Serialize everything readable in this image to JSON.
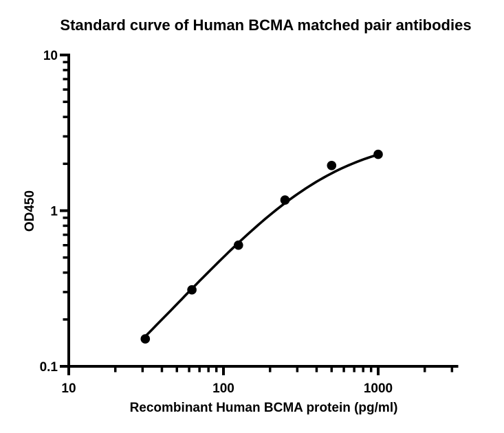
{
  "page": {
    "background": "#ffffff"
  },
  "chart_data": {
    "type": "scatter",
    "title": "Standard curve of Human BCMA matched pair antibodies",
    "xlabel": "Recombinant Human BCMA protein (pg/ml)",
    "ylabel": "OD450",
    "x_scale": "log",
    "y_scale": "log",
    "xlim": [
      10,
      3162
    ],
    "ylim": [
      0.1,
      10
    ],
    "grid": false,
    "legend": "none",
    "x_major_ticks": [
      {
        "value": 10,
        "label": "10"
      },
      {
        "value": 100,
        "label": "100"
      },
      {
        "value": 1000,
        "label": "1000"
      }
    ],
    "x_minor_ticks": [
      20,
      30,
      40,
      50,
      60,
      70,
      80,
      90,
      200,
      300,
      400,
      500,
      600,
      700,
      800,
      900,
      2000,
      3000
    ],
    "y_major_ticks": [
      {
        "value": 0.1,
        "label": "0.1"
      },
      {
        "value": 1,
        "label": "1"
      },
      {
        "value": 10,
        "label": "10"
      }
    ],
    "y_minor_ticks": [
      0.2,
      0.3,
      0.4,
      0.5,
      0.6,
      0.7,
      0.8,
      0.9,
      2,
      3,
      4,
      5,
      6,
      7,
      8,
      9
    ],
    "points": [
      {
        "x": 31.25,
        "y": 0.15
      },
      {
        "x": 62.5,
        "y": 0.31
      },
      {
        "x": 125,
        "y": 0.6
      },
      {
        "x": 250,
        "y": 1.17
      },
      {
        "x": 500,
        "y": 1.95
      },
      {
        "x": 1000,
        "y": 2.3
      }
    ],
    "fit": {
      "model": "4PL",
      "bottom": 0.02,
      "top": 3.05,
      "ec50": 400,
      "hill": 1.2,
      "x_start": 31.25,
      "x_end": 1000
    },
    "marker": {
      "shape": "circle",
      "color": "#000000"
    },
    "curve_color": "#000000",
    "axis_color": "#000000",
    "background": "#ffffff"
  }
}
